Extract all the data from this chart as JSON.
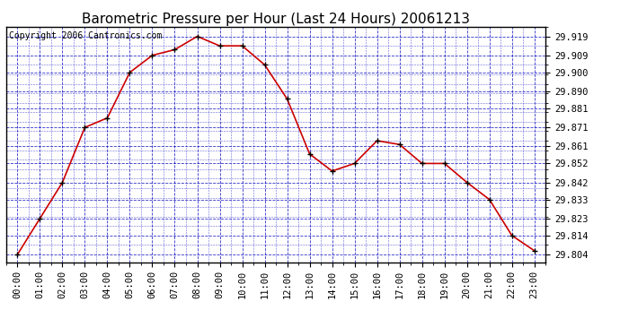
{
  "title": "Barometric Pressure per Hour (Last 24 Hours) 20061213",
  "copyright_text": "Copyright 2006 Cantronics.com",
  "hours": [
    "00:00",
    "01:00",
    "02:00",
    "03:00",
    "04:00",
    "05:00",
    "06:00",
    "07:00",
    "08:00",
    "09:00",
    "10:00",
    "11:00",
    "12:00",
    "13:00",
    "14:00",
    "15:00",
    "16:00",
    "17:00",
    "18:00",
    "19:00",
    "20:00",
    "21:00",
    "22:00",
    "23:00"
  ],
  "values": [
    29.804,
    29.823,
    29.842,
    29.871,
    29.876,
    29.9,
    29.909,
    29.912,
    29.919,
    29.914,
    29.914,
    29.904,
    29.886,
    29.857,
    29.848,
    29.852,
    29.864,
    29.862,
    29.852,
    29.852,
    29.842,
    29.833,
    29.814,
    29.806
  ],
  "yticks": [
    29.919,
    29.909,
    29.9,
    29.89,
    29.881,
    29.871,
    29.861,
    29.852,
    29.842,
    29.833,
    29.823,
    29.814,
    29.804
  ],
  "ylim_min": 29.8,
  "ylim_max": 29.924,
  "line_color": "#cc0000",
  "marker_color": "#000000",
  "background_color": "#ffffff",
  "grid_color": "#0000bb",
  "title_fontsize": 11,
  "copyright_fontsize": 7,
  "tick_fontsize": 7.5
}
